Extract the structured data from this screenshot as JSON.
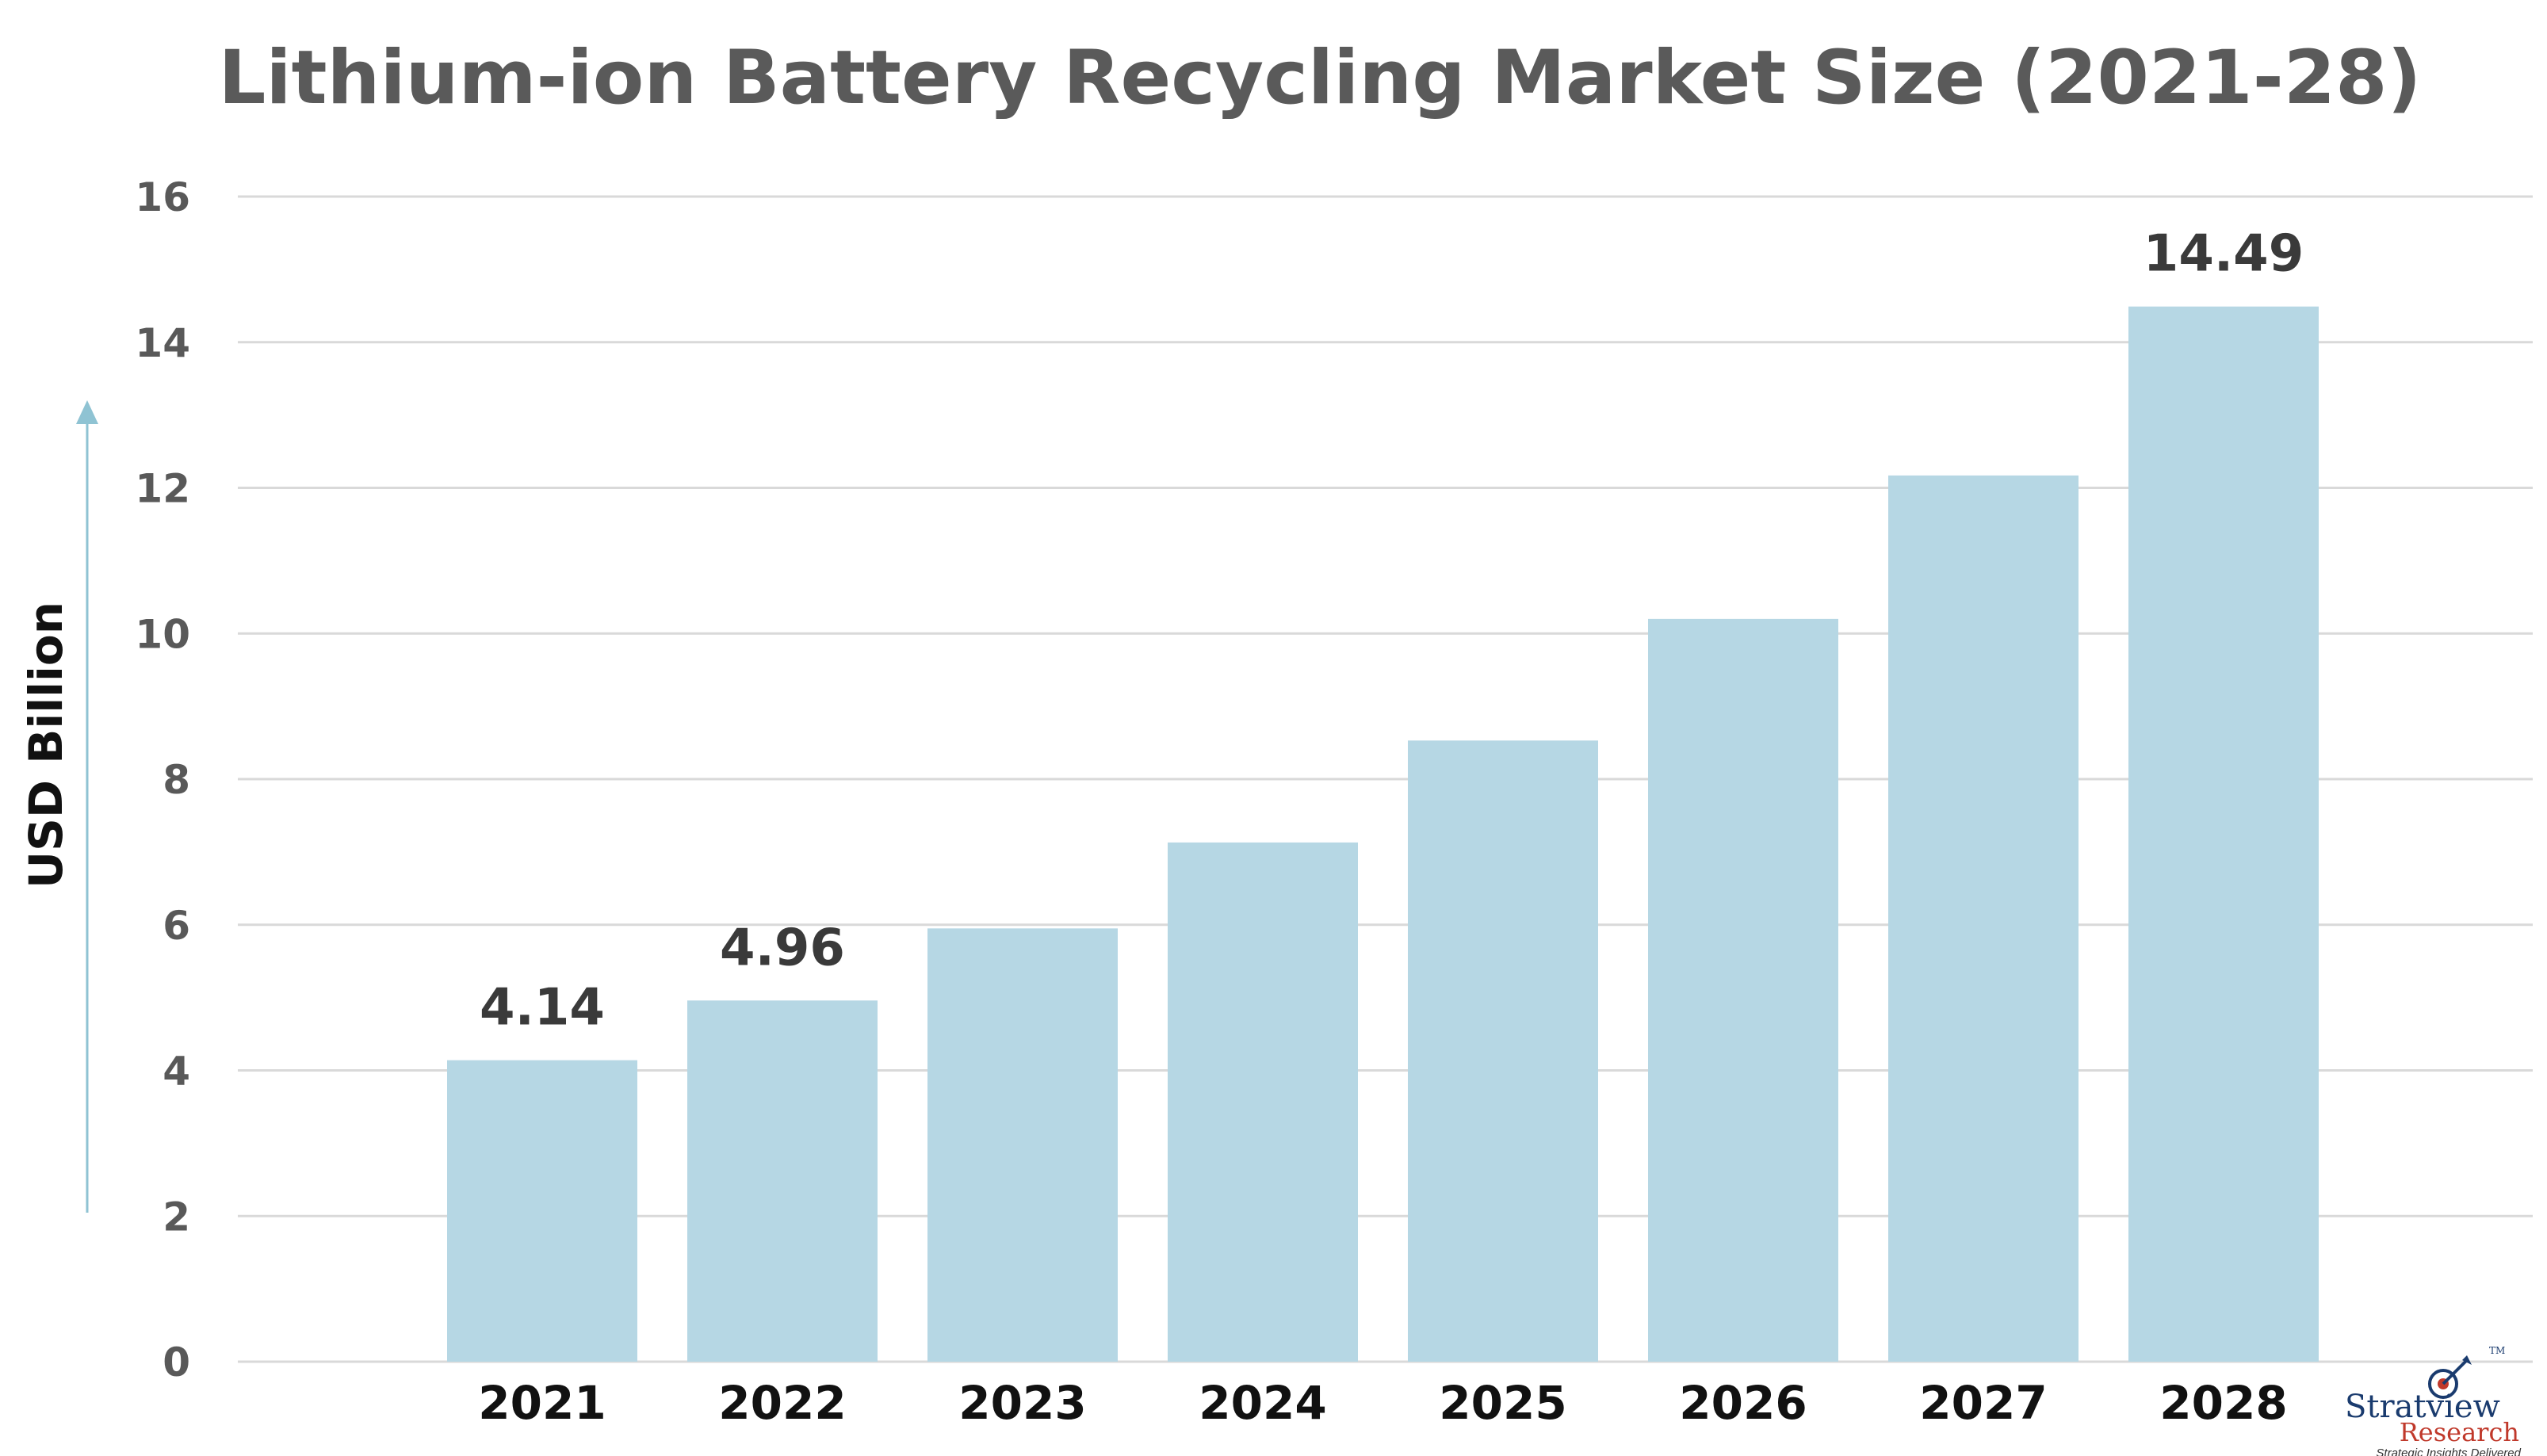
{
  "colors": {
    "bar": "#b6d7e4",
    "gridline": "#d9d9d9",
    "arrow": "#8fc3d3",
    "title": "#5a5a5a",
    "logo_blue": "#1a3b6e",
    "logo_red": "#c0392b"
  },
  "logo": {
    "name_part1": "Stratv",
    "name_part2": "iew",
    "trademark": "TM",
    "line2": "Research",
    "tagline": "Strategic Insights Delivered",
    "icon": "target-arrow-icon"
  },
  "chart_data": {
    "type": "bar",
    "title": "Lithium-ion Battery Recycling Market Size (2021-28)",
    "xlabel": "",
    "ylabel": "USD Billion",
    "ylim": [
      0,
      16
    ],
    "yticks": [
      "0",
      "2",
      "4",
      "6",
      "8",
      "10",
      "12",
      "14",
      "16"
    ],
    "grid": true,
    "categories": [
      "2021",
      "2022",
      "2023",
      "2024",
      "2025",
      "2026",
      "2027",
      "2028"
    ],
    "values": [
      4.14,
      4.96,
      5.95,
      7.13,
      8.53,
      10.2,
      12.17,
      14.49
    ],
    "data_labels": [
      "4.14",
      "4.96",
      "",
      "",
      "",
      "",
      "",
      "14.49"
    ]
  }
}
